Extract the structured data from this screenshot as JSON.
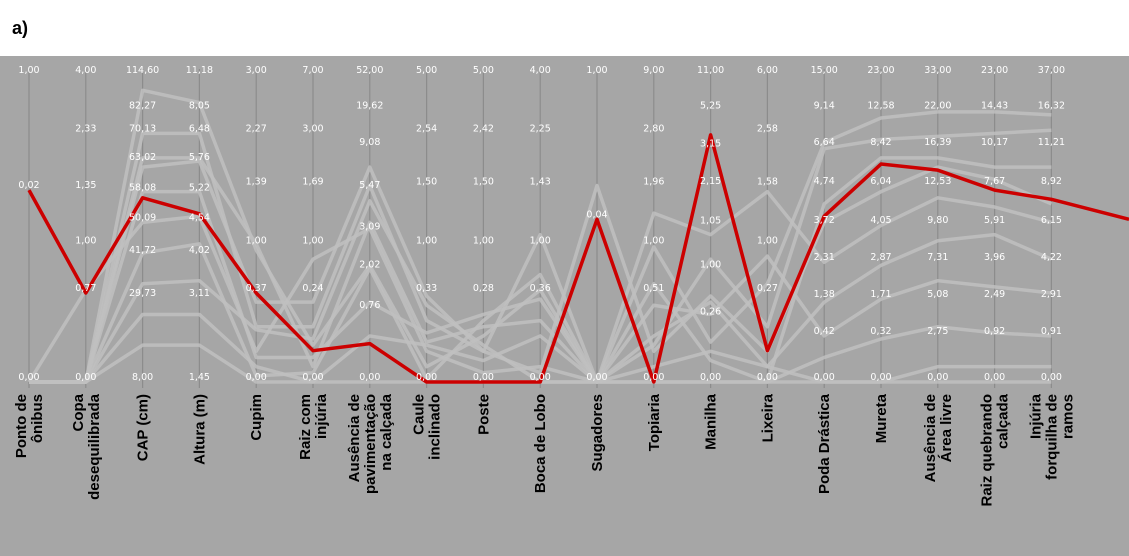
{
  "panel_label": "a)",
  "chart_data": {
    "type": "parallel-coordinates",
    "background_color": "#a6a6a6",
    "axis_color": "#8c8c8c",
    "background_line_color": "#bfbfbf",
    "highlight_color": "#cc0000",
    "axes": [
      {
        "name": "Ponto de ônibus",
        "ticks": [
          "1,00",
          "0,02",
          "0,00"
        ],
        "tick_pos": [
          0,
          0.375,
          1
        ],
        "highlight": 0.375
      },
      {
        "name": "Copa desequilibrada",
        "ticks": [
          "4,00",
          "2,33",
          "1,35",
          "1,00",
          "0,77",
          "0,00"
        ],
        "tick_pos": [
          0,
          0.19,
          0.375,
          0.555,
          0.71,
          1
        ],
        "highlight": 0.71
      },
      {
        "name": "CAP (cm)",
        "ticks": [
          "114,60",
          "82,27",
          "70,13",
          "63,02",
          "58,08",
          "50,09",
          "41,72",
          "29,73",
          "8,00"
        ],
        "tick_pos": [
          0,
          0.115,
          0.19,
          0.284,
          0.383,
          0.48,
          0.586,
          0.727,
          1
        ],
        "highlight": 0.4
      },
      {
        "name": "Altura (m)",
        "ticks": [
          "11,18",
          "8,05",
          "6,48",
          "5,76",
          "5,22",
          "4,54",
          "4,02",
          "3,11",
          "1,45"
        ],
        "tick_pos": [
          0,
          0.115,
          0.19,
          0.284,
          0.383,
          0.48,
          0.586,
          0.727,
          1
        ],
        "highlight": 0.452
      },
      {
        "name": "Cupim",
        "ticks": [
          "3,00",
          "2,27",
          "1,39",
          "1,00",
          "0,37",
          "0,00"
        ],
        "tick_pos": [
          0,
          0.19,
          0.364,
          0.555,
          0.71,
          1
        ],
        "highlight": 0.71
      },
      {
        "name": "Raiz com injúria",
        "ticks": [
          "7,00",
          "3,00",
          "1,69",
          "1,00",
          "0,24",
          "0,00"
        ],
        "tick_pos": [
          0,
          0.19,
          0.364,
          0.555,
          0.71,
          1
        ],
        "highlight": 0.898
      },
      {
        "name": "Ausência de pavimentação na calçada",
        "ticks": [
          "52,00",
          "19,62",
          "9,08",
          "5,47",
          "3,09",
          "2,02",
          "0,76",
          "0,00"
        ],
        "tick_pos": [
          0,
          0.115,
          0.235,
          0.375,
          0.51,
          0.633,
          0.766,
          1
        ],
        "highlight": 0.875
      },
      {
        "name": "Caule inclinado",
        "ticks": [
          "5,00",
          "2,54",
          "1,50",
          "1,00",
          "0,33",
          "0,00"
        ],
        "tick_pos": [
          0,
          0.19,
          0.364,
          0.555,
          0.71,
          1
        ],
        "highlight": 1
      },
      {
        "name": "Poste",
        "ticks": [
          "5,00",
          "2,42",
          "1,50",
          "1,00",
          "0,28",
          "0,00"
        ],
        "tick_pos": [
          0,
          0.19,
          0.364,
          0.555,
          0.71,
          1
        ],
        "highlight": 1
      },
      {
        "name": "Boca de Lobo",
        "ticks": [
          "4,00",
          "2,25",
          "1,43",
          "1,00",
          "0,36",
          "0,00"
        ],
        "tick_pos": [
          0,
          0.19,
          0.364,
          0.555,
          0.71,
          1
        ],
        "highlight": 1
      },
      {
        "name": "Sugadores",
        "ticks": [
          "1,00",
          "0,04",
          "0,00"
        ],
        "tick_pos": [
          0,
          0.47,
          1
        ],
        "highlight": 0.47
      },
      {
        "name": "Topiaria",
        "ticks": [
          "9,00",
          "2,80",
          "1,96",
          "1,00",
          "0,51",
          "0,00"
        ],
        "tick_pos": [
          0,
          0.19,
          0.364,
          0.555,
          0.71,
          1
        ],
        "highlight": 1
      },
      {
        "name": "Manilha",
        "ticks": [
          "11,00",
          "5,25",
          "3,15",
          "2,15",
          "1,05",
          "1,00",
          "0,26",
          "0,00"
        ],
        "tick_pos": [
          0,
          0.115,
          0.239,
          0.361,
          0.49,
          0.633,
          0.786,
          1
        ],
        "highlight": 0.195
      },
      {
        "name": "Lixeira",
        "ticks": [
          "6,00",
          "2,58",
          "1,58",
          "1,00",
          "0,27",
          "0,00"
        ],
        "tick_pos": [
          0,
          0.19,
          0.364,
          0.555,
          0.71,
          1
        ],
        "highlight": 0.898
      },
      {
        "name": "Poda Drástica",
        "ticks": [
          "15,00",
          "9,14",
          "6,64",
          "4,74",
          "3,72",
          "2,31",
          "1,38",
          "0,42",
          "0,00"
        ],
        "tick_pos": [
          0,
          0.115,
          0.235,
          0.361,
          0.488,
          0.609,
          0.729,
          0.85,
          1
        ],
        "highlight": 0.46
      },
      {
        "name": "Mureta",
        "ticks": [
          "23,00",
          "12,58",
          "8,42",
          "6,04",
          "4,05",
          "2,87",
          "1,71",
          "0,32",
          "0,00"
        ],
        "tick_pos": [
          0,
          0.115,
          0.235,
          0.361,
          0.488,
          0.609,
          0.729,
          0.85,
          1
        ],
        "highlight": 0.29
      },
      {
        "name": "Ausência de Área livre",
        "ticks": [
          "33,00",
          "22,00",
          "16,39",
          "12,53",
          "9,80",
          "7,31",
          "5,08",
          "2,75",
          "0,00"
        ],
        "tick_pos": [
          0,
          0.115,
          0.235,
          0.361,
          0.488,
          0.609,
          0.729,
          0.85,
          1
        ],
        "highlight": 0.31
      },
      {
        "name": "Raiz quebrando calçada",
        "ticks": [
          "23,00",
          "14,43",
          "10,17",
          "7,67",
          "5,91",
          "3,96",
          "2,49",
          "0,92",
          "0,00"
        ],
        "tick_pos": [
          0,
          0.115,
          0.235,
          0.361,
          0.488,
          0.609,
          0.729,
          0.85,
          1
        ],
        "highlight": 0.375
      },
      {
        "name": "Injúria forquilha de ramos",
        "ticks": [
          "37,00",
          "16,32",
          "11,21",
          "8,92",
          "6,15",
          "4,22",
          "2,91",
          "0,91",
          "0,00"
        ],
        "tick_pos": [
          0,
          0.115,
          0.235,
          0.361,
          0.488,
          0.609,
          0.729,
          0.85,
          1
        ],
        "highlight": 0.405
      }
    ],
    "background_lines": [
      [
        1,
        1,
        0.05,
        0.09,
        0.57,
        0.88,
        0.62,
        0.95,
        0.85,
        0.7,
        1,
        0.68,
        0.93,
        1,
        0.42,
        0.27,
        0.27,
        0.3,
        0.3
      ],
      [
        1,
        1,
        0.19,
        0.19,
        0.82,
        0.82,
        0.36,
        0.8,
        0.9,
        0.52,
        1,
        0.88,
        0.6,
        0.82,
        0.24,
        0.21,
        0.2,
        0.19,
        0.18
      ],
      [
        1,
        1,
        0.27,
        0.27,
        0.55,
        0.95,
        0.48,
        0.87,
        0.82,
        0.8,
        1,
        0.56,
        0.87,
        0.68,
        0.22,
        0.14,
        0.12,
        0.12,
        0.13
      ],
      [
        1,
        1,
        0.3,
        0.28,
        0.74,
        0.74,
        0.3,
        0.72,
        0.9,
        0.97,
        0.36,
        0.9,
        0.72,
        0.9,
        0.48,
        0.38,
        0.3,
        0.34,
        0.42
      ],
      [
        1,
        1,
        0.38,
        0.38,
        0.92,
        0.92,
        0.74,
        0.84,
        0.78,
        0.73,
        1,
        0.45,
        0.52,
        0.38,
        0.61,
        0.49,
        0.4,
        0.43,
        0.48
      ],
      [
        1,
        0.7,
        0.48,
        0.46,
        0.9,
        0.6,
        0.5,
        0.9,
        0.97,
        0.95,
        1,
        0.95,
        0.9,
        0.95,
        0.74,
        0.62,
        0.54,
        0.52,
        0.6
      ],
      [
        1,
        1,
        0.58,
        0.55,
        0.98,
        0.97,
        0.63,
        0.99,
        0.8,
        0.65,
        1,
        0.75,
        0.78,
        0.59,
        0.85,
        0.73,
        0.67,
        0.69,
        0.71
      ],
      [
        1,
        1,
        0.68,
        0.67,
        0.83,
        0.86,
        0.41,
        0.75,
        0.88,
        1,
        1,
        1,
        1,
        1,
        0.92,
        0.86,
        0.82,
        0.84,
        0.85
      ],
      [
        1,
        1,
        0.78,
        0.78,
        0.95,
        1,
        0.85,
        0.88,
        0.93,
        0.85,
        1,
        0.85,
        0.74,
        0.95,
        1,
        1,
        0.95,
        0.95,
        0.95
      ],
      [
        1,
        1,
        0.88,
        0.88,
        1,
        1,
        1,
        1,
        1,
        1,
        1,
        1,
        1,
        1,
        1,
        1,
        1,
        1,
        1
      ]
    ]
  }
}
